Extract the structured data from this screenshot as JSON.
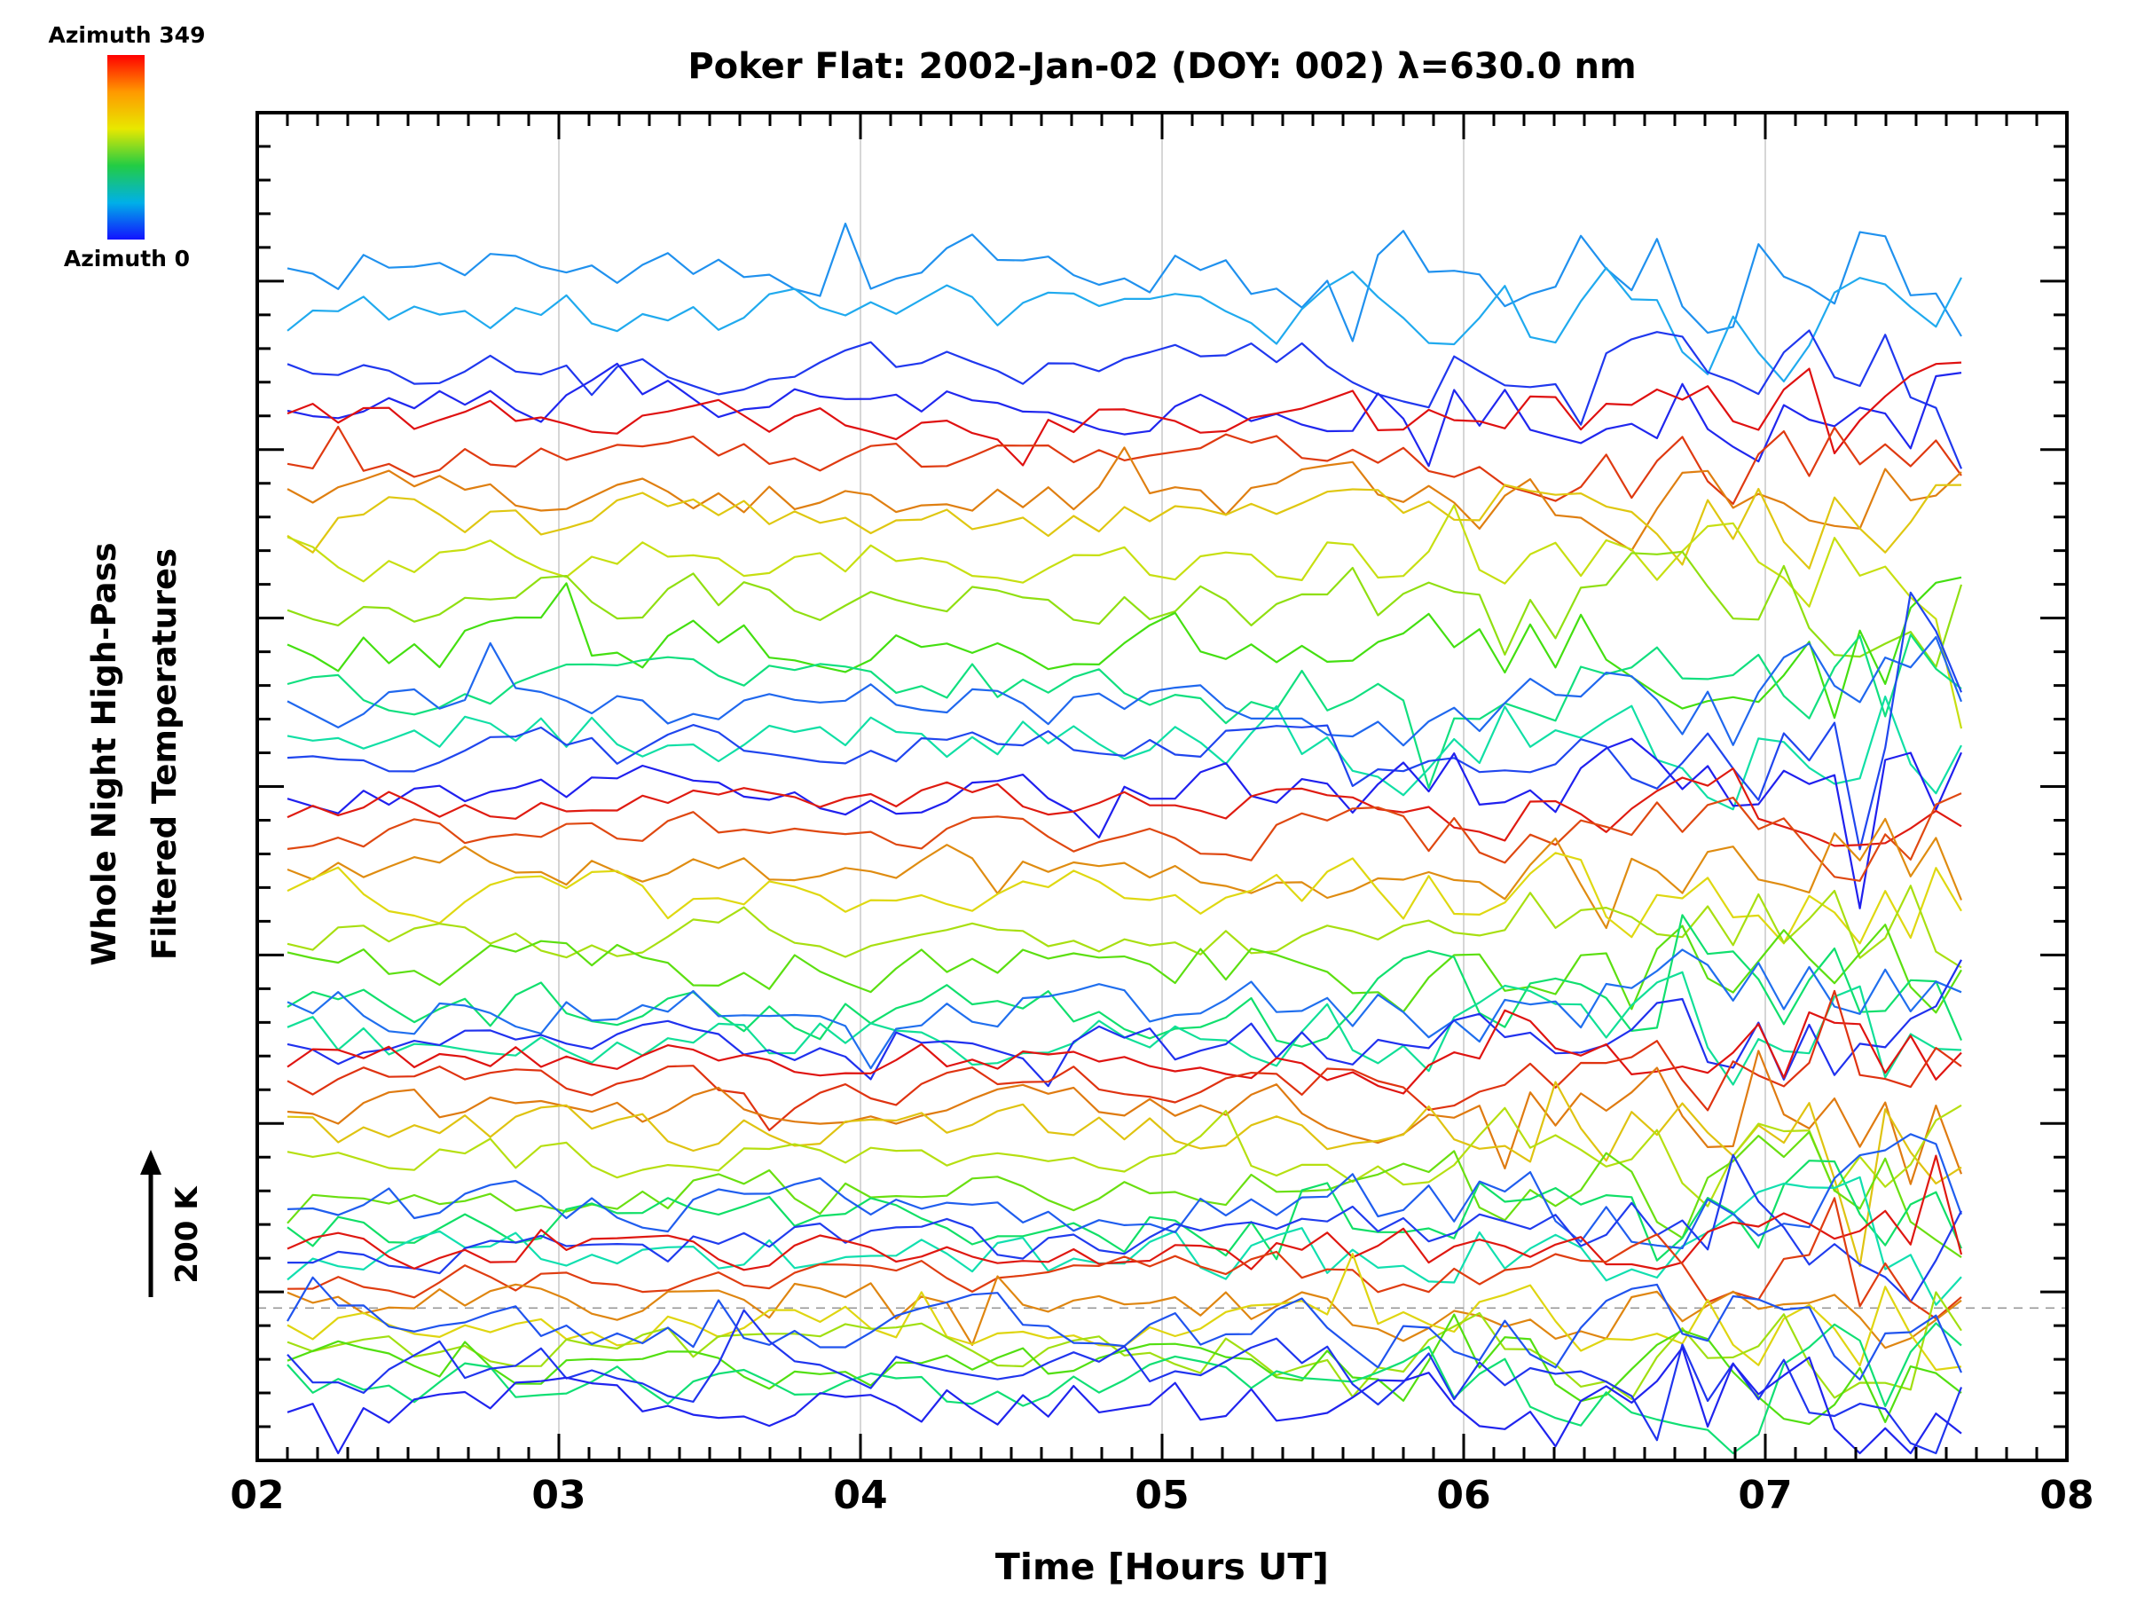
{
  "title": "Poker Flat: 2002-Jan-02 (DOY: 002) λ=630.0 nm",
  "colorbar": {
    "top_label": "Azimuth 349",
    "bottom_label": "Azimuth 0",
    "stops": [
      "#ff0000",
      "#ff9900",
      "#e8e800",
      "#22cc44",
      "#00b0e8",
      "#1212ff"
    ]
  },
  "y_axis": {
    "label_line1": "Whole Night High-Pass",
    "label_line2": "Filtered Temperatures",
    "scale_label": "200 K"
  },
  "x_axis": {
    "label": "Time [Hours UT]",
    "ticks": [
      "02",
      "03",
      "04",
      "05",
      "06",
      "07",
      "08"
    ]
  },
  "chart_data": {
    "type": "line",
    "title": "Poker Flat: 2002-Jan-02 (DOY: 002) λ=630.0 nm",
    "xlabel": "Time [Hours UT]",
    "ylabel": "Whole Night High-Pass Filtered Temperatures (stacked by azimuth, arbitrary offset; scale bar = 200 K)",
    "x_range": [
      2,
      8
    ],
    "x_start": 2.1,
    "x_end": 7.65,
    "n_points": 67,
    "gridlines_x": [
      3,
      4,
      5,
      6,
      7
    ],
    "dashed_reference_y_fraction": 0.887,
    "colormap": "rainbow: azimuth 0 = blue, azimuth 349 = red",
    "legend": "colorbar top-left maps line color to azimuth 0–349",
    "gen": {
      "seed_base": 11,
      "seed_step": 37,
      "smooth": 0.45,
      "grow_start": 4.8,
      "grow_rate": 0.55,
      "spike_prob": 0.035,
      "spike_prob_late": 0.07,
      "late_hour": 5.5,
      "spike_scale": 4.5
    },
    "series": [
      {
        "az": 48,
        "base": 0.115,
        "amp": 30
      },
      {
        "az": 58,
        "base": 0.15,
        "amp": 26
      },
      {
        "az": 10,
        "base": 0.188,
        "amp": 22
      },
      {
        "az": 3,
        "base": 0.215,
        "amp": 22
      },
      {
        "az": 349,
        "base": 0.228,
        "amp": 18
      },
      {
        "az": 332,
        "base": 0.256,
        "amp": 19
      },
      {
        "az": 302,
        "base": 0.285,
        "amp": 21
      },
      {
        "az": 272,
        "base": 0.302,
        "amp": 23
      },
      {
        "az": 252,
        "base": 0.33,
        "amp": 23
      },
      {
        "az": 228,
        "base": 0.36,
        "amp": 25
      },
      {
        "az": 196,
        "base": 0.395,
        "amp": 25
      },
      {
        "az": 128,
        "base": 0.43,
        "amp": 27
      },
      {
        "az": 112,
        "base": 0.462,
        "amp": 27
      },
      {
        "az": 30,
        "base": 0.44,
        "amp": 24
      },
      {
        "az": 16,
        "base": 0.474,
        "amp": 23
      },
      {
        "az": 0,
        "base": 0.503,
        "amp": 22
      },
      {
        "az": 344,
        "base": 0.512,
        "amp": 17
      },
      {
        "az": 326,
        "base": 0.536,
        "amp": 19
      },
      {
        "az": 296,
        "base": 0.558,
        "amp": 21
      },
      {
        "az": 264,
        "base": 0.58,
        "amp": 23
      },
      {
        "az": 238,
        "base": 0.606,
        "amp": 23
      },
      {
        "az": 206,
        "base": 0.634,
        "amp": 25
      },
      {
        "az": 135,
        "base": 0.664,
        "amp": 26
      },
      {
        "az": 118,
        "base": 0.69,
        "amp": 27
      },
      {
        "az": 34,
        "base": 0.664,
        "amp": 23
      },
      {
        "az": 7,
        "base": 0.694,
        "amp": 22
      },
      {
        "az": 347,
        "base": 0.701,
        "amp": 17
      },
      {
        "az": 334,
        "base": 0.72,
        "amp": 18
      },
      {
        "az": 304,
        "base": 0.74,
        "amp": 20
      },
      {
        "az": 274,
        "base": 0.756,
        "amp": 21
      },
      {
        "az": 244,
        "base": 0.776,
        "amp": 22
      },
      {
        "az": 212,
        "base": 0.8,
        "amp": 23
      },
      {
        "az": 138,
        "base": 0.824,
        "amp": 25
      },
      {
        "az": 108,
        "base": 0.85,
        "amp": 25
      },
      {
        "az": 26,
        "base": 0.812,
        "amp": 22
      },
      {
        "az": 12,
        "base": 0.84,
        "amp": 22
      },
      {
        "az": 346,
        "base": 0.846,
        "amp": 16
      },
      {
        "az": 330,
        "base": 0.864,
        "amp": 17
      },
      {
        "az": 300,
        "base": 0.884,
        "amp": 19
      },
      {
        "az": 266,
        "base": 0.9,
        "amp": 19
      },
      {
        "az": 236,
        "base": 0.916,
        "amp": 21
      },
      {
        "az": 202,
        "base": 0.93,
        "amp": 21
      },
      {
        "az": 132,
        "base": 0.944,
        "amp": 23
      },
      {
        "az": 22,
        "base": 0.9,
        "amp": 24
      },
      {
        "az": 8,
        "base": 0.932,
        "amp": 26
      },
      {
        "az": 2,
        "base": 0.956,
        "amp": 26
      }
    ]
  }
}
